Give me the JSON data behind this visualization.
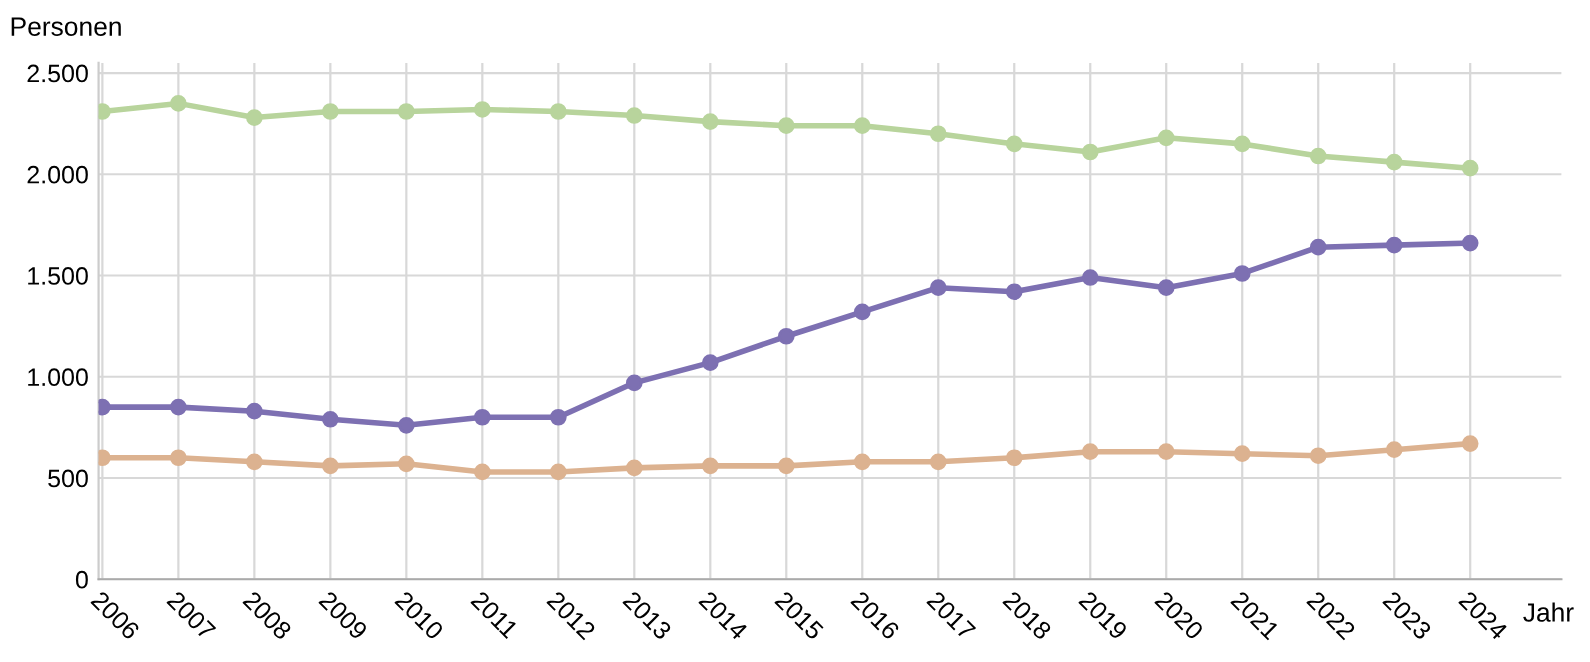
{
  "chart_data": {
    "type": "line",
    "ylabel": "Personen",
    "xlabel": "Jahr",
    "categories": [
      "2006",
      "2007",
      "2008",
      "2009",
      "2010",
      "2011",
      "2012",
      "2013",
      "2014",
      "2015",
      "2016",
      "2017",
      "2018",
      "2019",
      "2020",
      "2021",
      "2022",
      "2023",
      "2024"
    ],
    "series": [
      {
        "color": "#b8d49c",
        "values": [
          2310,
          2350,
          2280,
          2310,
          2310,
          2320,
          2310,
          2290,
          2260,
          2240,
          2240,
          2200,
          2150,
          2110,
          2180,
          2150,
          2090,
          2060,
          2030
        ]
      },
      {
        "color": "#7d70b2",
        "values": [
          850,
          850,
          830,
          790,
          760,
          800,
          800,
          970,
          1070,
          1200,
          1320,
          1440,
          1420,
          1490,
          1440,
          1510,
          1640,
          1650,
          1660
        ]
      },
      {
        "color": "#dcb290",
        "values": [
          600,
          600,
          580,
          560,
          570,
          530,
          530,
          550,
          560,
          560,
          580,
          580,
          600,
          630,
          630,
          620,
          610,
          640,
          670
        ]
      }
    ],
    "ylim": [
      0,
      2550
    ],
    "yticks": [
      0,
      {
        "value": 500,
        "label": "500"
      },
      {
        "value": 1000,
        "label": "1.000"
      },
      {
        "value": 1500,
        "label": "1.500"
      },
      {
        "value": 2000,
        "label": "2.000"
      },
      {
        "value": 2500,
        "label": "2.500"
      }
    ],
    "grid": true,
    "marker": "circle",
    "line_style": "solid"
  }
}
